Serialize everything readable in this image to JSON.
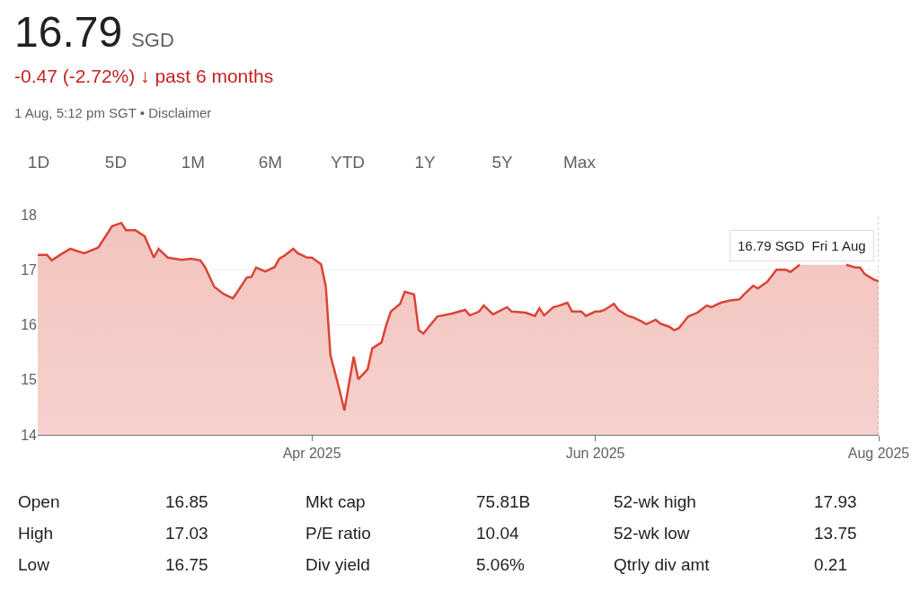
{
  "chart_data": {
    "type": "area",
    "title": "16.79 SGD",
    "subtitle": "-0.47 (-2.72%) ↓ past 6 months",
    "x": [
      "2025-02-01",
      "2025-02-03",
      "2025-02-04",
      "2025-02-06",
      "2025-02-08",
      "2025-02-11",
      "2025-02-14",
      "2025-02-17",
      "2025-02-19",
      "2025-02-20",
      "2025-02-22",
      "2025-02-24",
      "2025-02-26",
      "2025-02-27",
      "2025-03-01",
      "2025-03-04",
      "2025-03-06",
      "2025-03-08",
      "2025-03-09",
      "2025-03-11",
      "2025-03-13",
      "2025-03-15",
      "2025-03-16",
      "2025-03-18",
      "2025-03-19",
      "2025-03-20",
      "2025-03-22",
      "2025-03-24",
      "2025-03-25",
      "2025-03-26",
      "2025-03-28",
      "2025-03-29",
      "2025-03-31",
      "2025-04-01",
      "2025-04-03",
      "2025-04-04",
      "2025-04-05",
      "2025-04-07",
      "2025-04-08",
      "2025-04-10",
      "2025-04-11",
      "2025-04-13",
      "2025-04-14",
      "2025-04-16",
      "2025-04-17",
      "2025-04-18",
      "2025-04-20",
      "2025-04-21",
      "2025-04-23",
      "2025-04-24",
      "2025-04-25",
      "2025-04-28",
      "2025-05-01",
      "2025-05-04",
      "2025-05-05",
      "2025-05-07",
      "2025-05-08",
      "2025-05-10",
      "2025-05-13",
      "2025-05-14",
      "2025-05-17",
      "2025-05-19",
      "2025-05-20",
      "2025-05-21",
      "2025-05-23",
      "2025-05-24",
      "2025-05-26",
      "2025-05-27",
      "2025-05-29",
      "2025-05-30",
      "2025-06-01",
      "2025-06-02",
      "2025-06-03",
      "2025-06-05",
      "2025-06-06",
      "2025-06-08",
      "2025-06-09",
      "2025-06-11",
      "2025-06-12",
      "2025-06-14",
      "2025-06-15",
      "2025-06-17",
      "2025-06-18",
      "2025-06-19",
      "2025-06-21",
      "2025-06-23",
      "2025-06-25",
      "2025-06-26",
      "2025-06-28",
      "2025-06-30",
      "2025-07-02",
      "2025-07-03",
      "2025-07-05",
      "2025-07-06",
      "2025-07-08",
      "2025-07-10",
      "2025-07-12",
      "2025-07-13",
      "2025-07-15",
      "2025-07-17",
      "2025-07-20",
      "2025-07-23",
      "2025-07-25",
      "2025-07-27",
      "2025-07-28",
      "2025-07-29",
      "2025-07-31",
      "2025-08-01"
    ],
    "series": [
      {
        "color": "#db4437",
        "values": [
          17.27,
          17.27,
          17.17,
          17.28,
          17.38,
          17.3,
          17.4,
          17.79,
          17.85,
          17.72,
          17.72,
          17.61,
          17.22,
          17.38,
          17.22,
          17.18,
          17.2,
          17.17,
          17.05,
          16.69,
          16.56,
          16.48,
          16.6,
          16.86,
          16.87,
          17.04,
          16.97,
          17.05,
          17.2,
          17.25,
          17.38,
          17.3,
          17.22,
          17.22,
          17.1,
          16.7,
          15.45,
          14.8,
          14.44,
          15.42,
          15.01,
          15.19,
          15.57,
          15.68,
          15.99,
          16.24,
          16.38,
          16.6,
          16.55,
          15.9,
          15.84,
          16.15,
          16.2,
          16.27,
          16.17,
          16.24,
          16.35,
          16.19,
          16.32,
          16.24,
          16.22,
          16.16,
          16.3,
          16.17,
          16.32,
          16.34,
          16.4,
          16.24,
          16.24,
          16.16,
          16.24,
          16.24,
          16.27,
          16.38,
          16.27,
          16.16,
          16.14,
          16.06,
          16.01,
          16.09,
          16.02,
          15.96,
          15.9,
          15.94,
          16.15,
          16.22,
          16.35,
          16.32,
          16.4,
          16.44,
          16.46,
          16.55,
          16.71,
          16.66,
          16.78,
          17.0,
          17.0,
          16.96,
          17.09,
          null,
          null,
          null,
          17.09,
          17.04,
          17.04,
          16.92,
          16.82,
          16.79
        ]
      }
    ],
    "xlim": [
      "2025-02-01",
      "2025-08-01"
    ],
    "xticks": [
      {
        "value": "2025-04-01",
        "label": "Apr 2025"
      },
      {
        "value": "2025-06-01",
        "label": "Jun 2025"
      },
      {
        "value": "2025-08-01",
        "label": "Aug 2025"
      }
    ],
    "ylim": [
      14,
      18
    ],
    "yticks": [
      14,
      15,
      16,
      17,
      18
    ],
    "grid": "y",
    "marker": "none",
    "line_style": "solid",
    "ref_lines": [
      {
        "axis": "x",
        "value": "2025-08-01",
        "line_style": "dotted",
        "color": "#9e9e9e"
      }
    ],
    "annotations": [
      "1 Aug, 5:12 pm SGT • Disclaimer",
      "1D",
      "5D",
      "1M",
      "6M",
      "YTD",
      "1Y",
      "5Y",
      "Max",
      "Open",
      "16.85",
      "Mkt cap",
      "75.81B",
      "52-wk high",
      "17.93",
      "High",
      "17.03",
      "P/E ratio",
      "10.04",
      "52-wk low",
      "13.75",
      "Low",
      "16.75",
      "Div yield",
      "5.06%",
      "Qtrly div amt",
      "0.21",
      "16.79 SGD  Fri 1 Aug"
    ]
  }
}
